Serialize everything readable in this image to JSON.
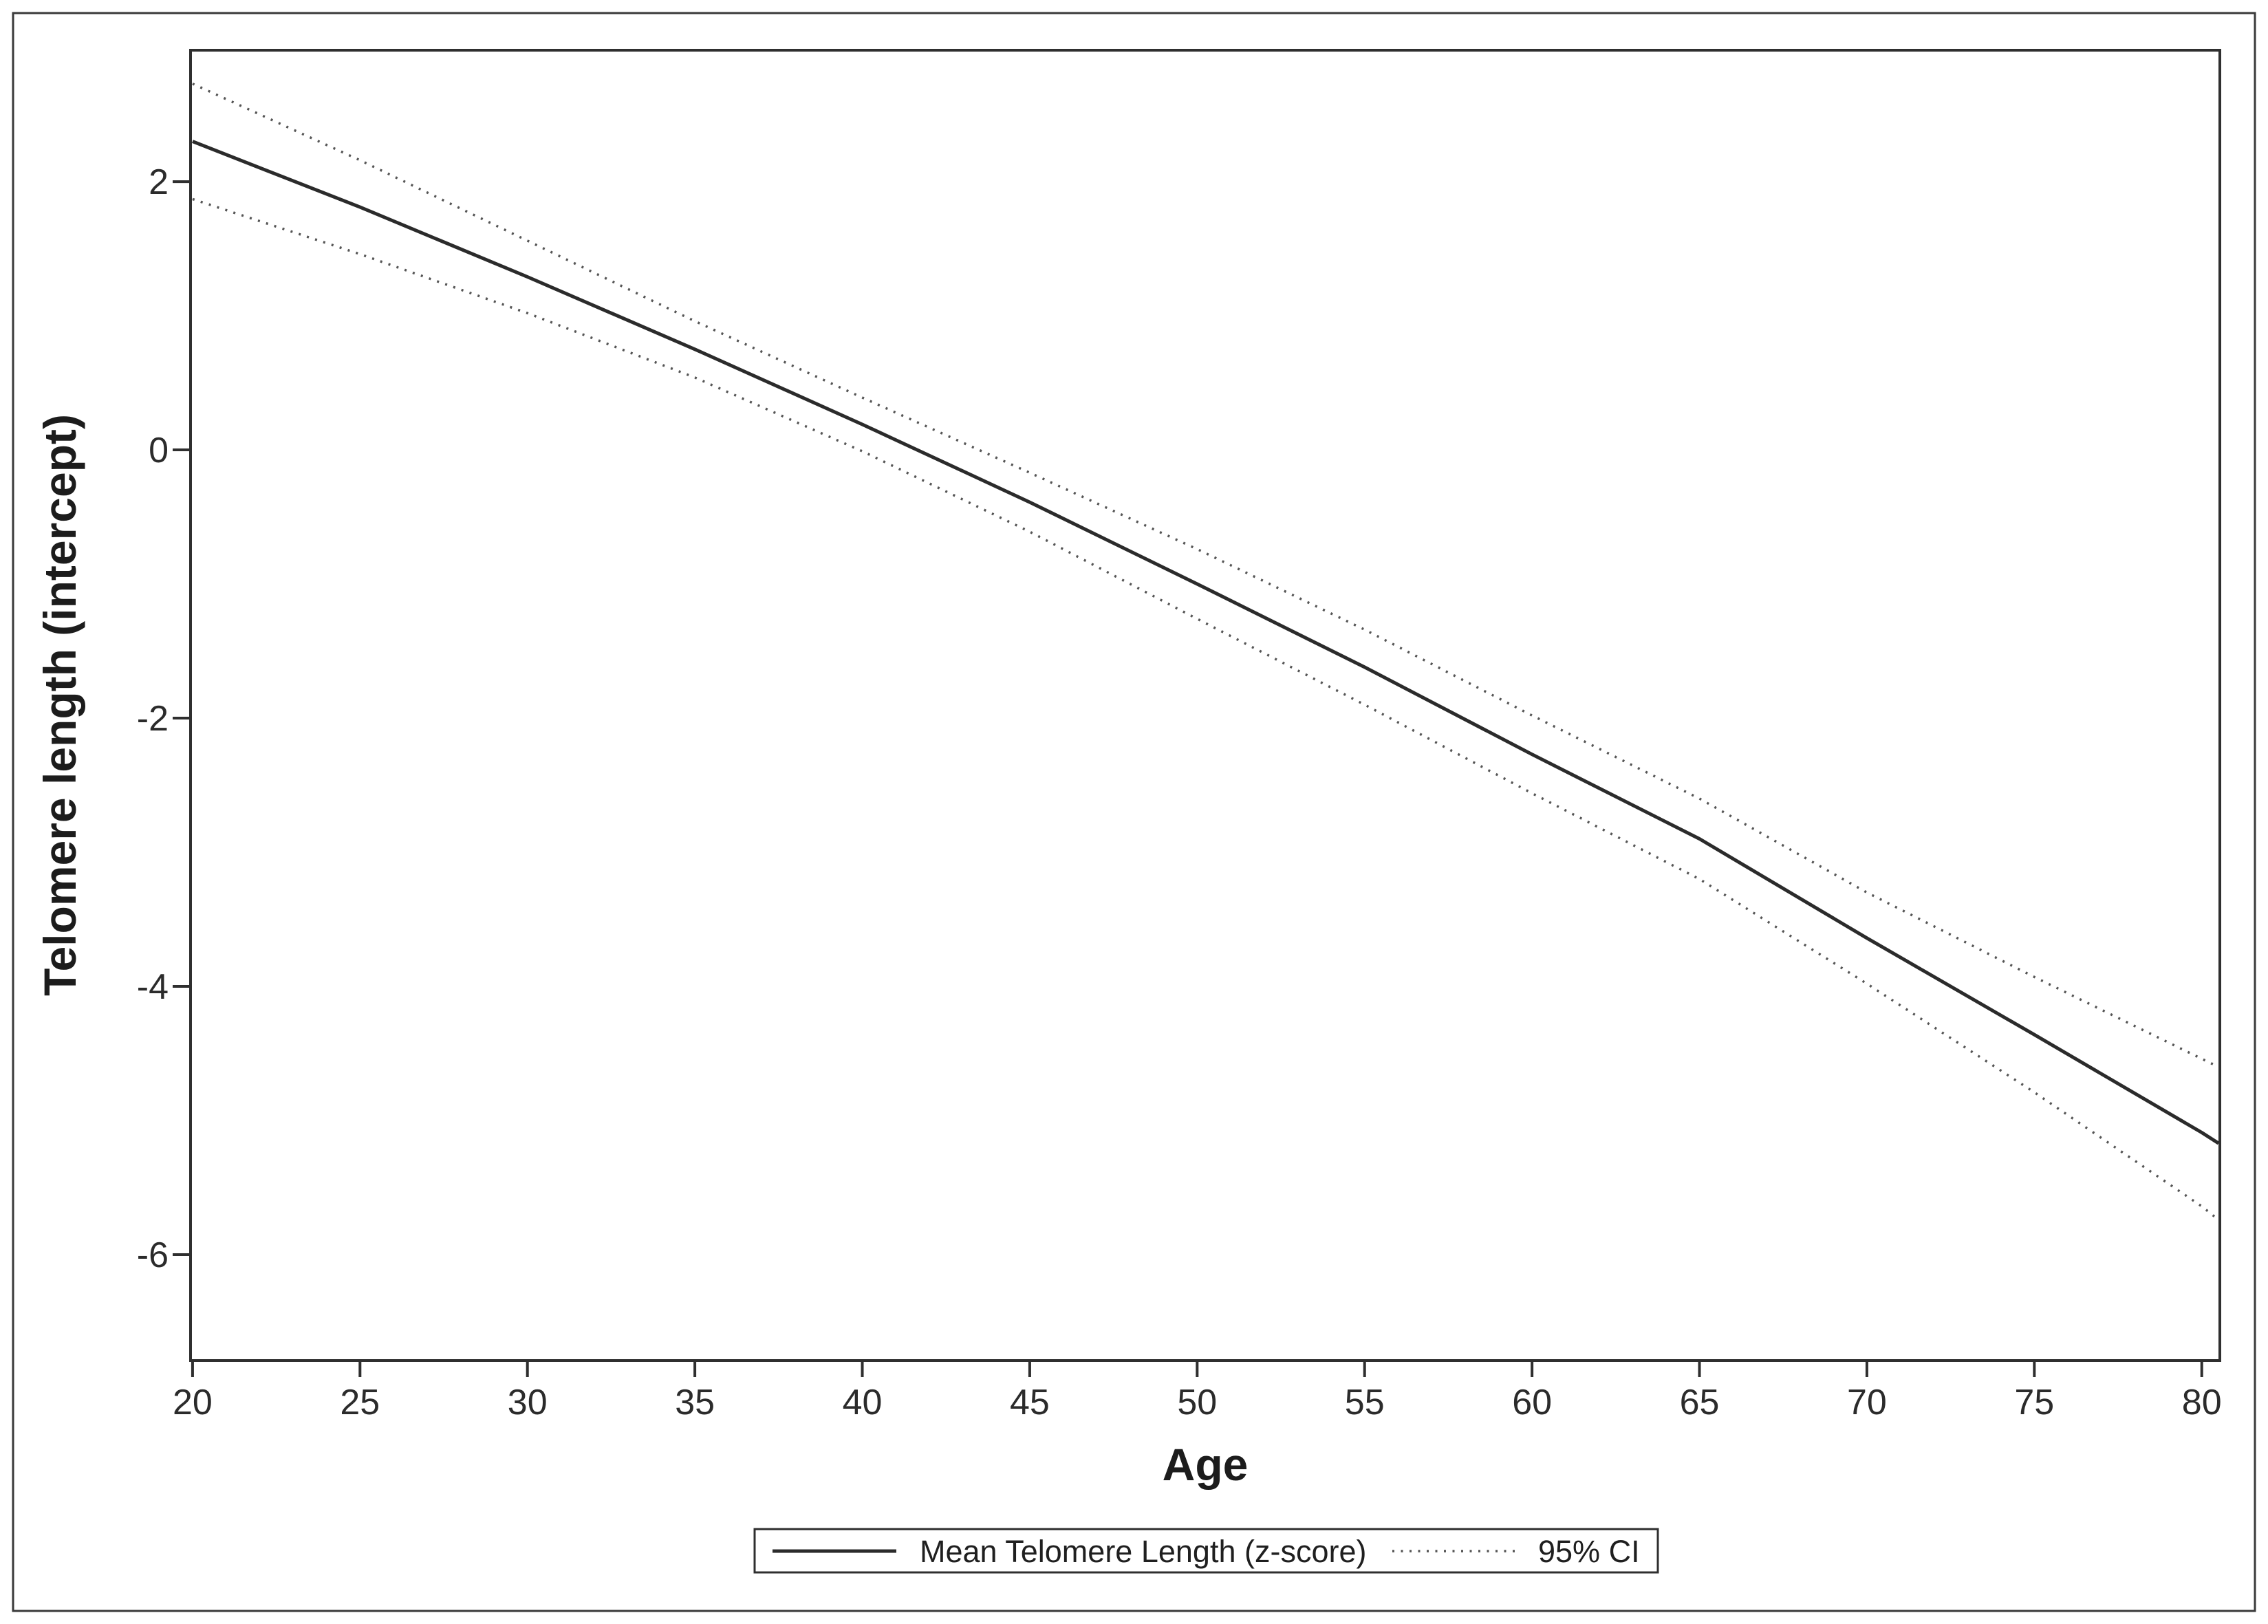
{
  "figure": {
    "background_color": "#ffffff",
    "outer_border_color": "#3a3a3a",
    "axis_color": "#2f2f2f",
    "mean_line_color": "#2b2b2b",
    "ci_line_color": "#555555",
    "text_color": "#222222"
  },
  "chart_data": {
    "type": "line",
    "title": "",
    "xlabel": "Age",
    "ylabel": "Telomere length (intercept)",
    "xlim": [
      19.94,
      80.54
    ],
    "ylim": [
      -6.79,
      2.98
    ],
    "x_ticks": [
      20,
      25,
      30,
      35,
      40,
      45,
      50,
      55,
      60,
      65,
      70,
      75,
      80
    ],
    "y_ticks": [
      2,
      0,
      -2,
      -4,
      -6
    ],
    "grid": false,
    "x": [
      20,
      25,
      30,
      35,
      40,
      45,
      50,
      55,
      60,
      65,
      70,
      75,
      80,
      80.5
    ],
    "series": [
      {
        "name": "Mean Telomere Length (z-score)",
        "style": "solid",
        "values": [
          2.3,
          1.81,
          1.29,
          0.75,
          0.19,
          -0.39,
          -1.0,
          -1.62,
          -2.27,
          -2.9,
          -3.64,
          -4.36,
          -5.09,
          -5.17
        ]
      },
      {
        "name": "95% CI upper",
        "style": "dotted",
        "values": [
          2.73,
          2.16,
          1.56,
          0.96,
          0.39,
          -0.17,
          -0.74,
          -1.34,
          -1.98,
          -2.6,
          -3.3,
          -3.93,
          -4.54,
          -4.6
        ]
      },
      {
        "name": "95% CI lower",
        "style": "dotted",
        "values": [
          1.87,
          1.46,
          1.02,
          0.54,
          -0.01,
          -0.61,
          -1.26,
          -1.9,
          -2.56,
          -3.2,
          -3.98,
          -4.79,
          -5.64,
          -5.74
        ]
      }
    ],
    "legend": {
      "position": "bottom-center",
      "entries": [
        {
          "label": "Mean Telomere Length (z-score)",
          "style": "solid"
        },
        {
          "label": "95% CI",
          "style": "dotted"
        }
      ]
    }
  }
}
